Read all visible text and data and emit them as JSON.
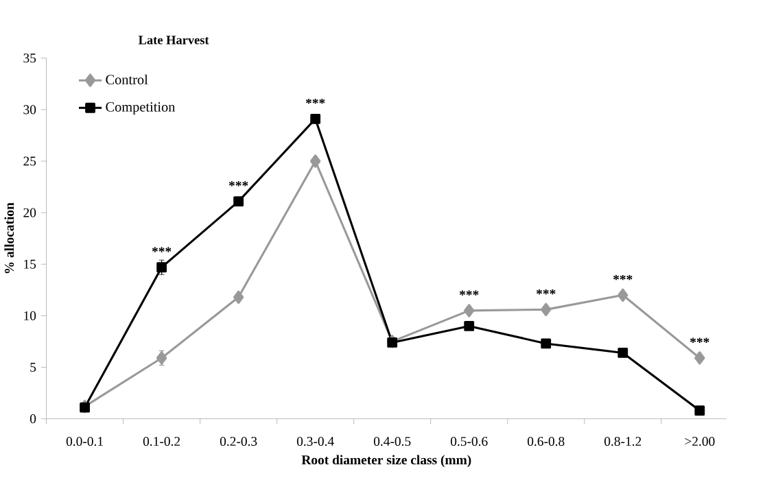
{
  "chart_data": {
    "type": "line",
    "title": "Late Harvest",
    "xlabel": "Root diameter size class (mm)",
    "ylabel": "% allocation",
    "categories": [
      "0.0-0.1",
      "0.1-0.2",
      "0.2-0.3",
      "0.3-0.4",
      "0.4-0.5",
      "0.5-0.6",
      "0.6-0.8",
      "0.8-1.2",
      ">2.00"
    ],
    "series": [
      {
        "name": "Control",
        "color": "#999999",
        "marker": "diamond",
        "values": [
          1.2,
          5.9,
          11.8,
          25.0,
          7.5,
          10.5,
          10.6,
          12.0,
          5.9
        ],
        "errors": [
          null,
          0.7,
          0.3,
          null,
          null,
          null,
          null,
          null,
          null
        ]
      },
      {
        "name": "Competition",
        "color": "#000000",
        "marker": "square",
        "values": [
          1.1,
          14.7,
          21.1,
          29.1,
          7.4,
          9.0,
          7.3,
          6.4,
          0.8
        ],
        "errors": [
          null,
          0.7,
          null,
          null,
          null,
          null,
          null,
          null,
          null
        ]
      }
    ],
    "ylim": [
      0,
      35
    ],
    "yticks": [
      0,
      5,
      10,
      15,
      20,
      25,
      30,
      35
    ],
    "grid": false,
    "legend": "top left",
    "line_style": "solid",
    "annotations": [
      {
        "text": "***",
        "x": "0.1-0.2",
        "y": 14.7
      },
      {
        "text": "***",
        "x": "0.2-0.3",
        "y": 21.1
      },
      {
        "text": "***",
        "x": "0.3-0.4",
        "y": 29.1
      },
      {
        "text": "***",
        "x": "0.5-0.6",
        "y": 10.5
      },
      {
        "text": "***",
        "x": "0.6-0.8",
        "y": 10.6
      },
      {
        "text": "***",
        "x": "0.8-1.2",
        "y": 12.0
      },
      {
        "text": "***",
        "x": ">2.00",
        "y": 5.9
      }
    ]
  }
}
